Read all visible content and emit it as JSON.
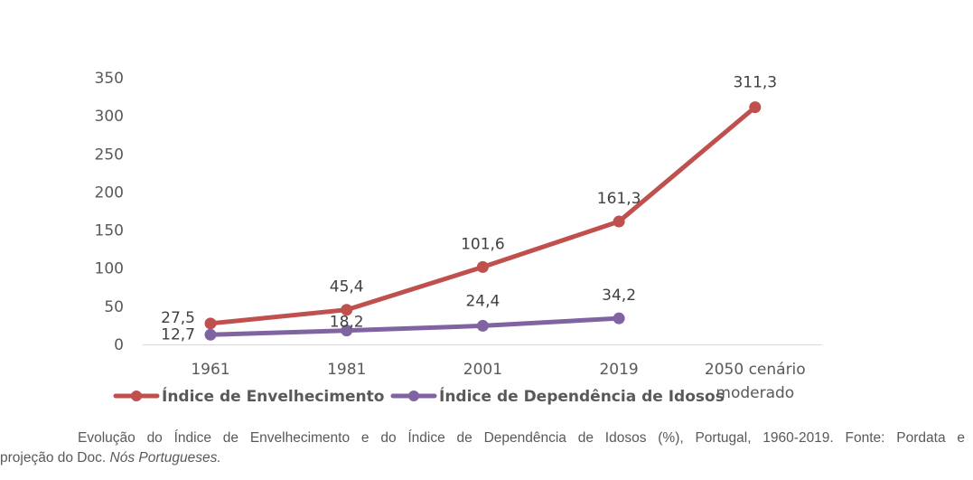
{
  "chart_data": {
    "type": "line",
    "title": "",
    "xlabel": "",
    "ylabel": "",
    "categories": [
      "1961",
      "1981",
      "2001",
      "2019",
      "2050 cenário moderado"
    ],
    "category_lines": [
      [
        "1961"
      ],
      [
        "1981"
      ],
      [
        "2001"
      ],
      [
        "2019"
      ],
      [
        "2050 cenário",
        "moderado"
      ]
    ],
    "ylim": [
      0,
      350
    ],
    "yticks": [
      0,
      50,
      100,
      150,
      200,
      250,
      300,
      350
    ],
    "grid": false,
    "legend_position": "bottom-left",
    "series": [
      {
        "name": "Índice de Envelhecimento",
        "color": "#c0504d",
        "values": [
          27.5,
          45.4,
          101.6,
          161.3,
          311.3
        ],
        "labels": [
          "27,5",
          "45,4",
          "101,6",
          "161,3",
          "311,3"
        ]
      },
      {
        "name": "Índice de Dependência de Idosos",
        "color": "#8064a2",
        "values": [
          12.7,
          18.2,
          24.4,
          34.2,
          null
        ],
        "labels": [
          "12,7",
          "18,2",
          "24,4",
          "34,2",
          null
        ]
      }
    ]
  },
  "caption": {
    "line1": "Evolução do Índice de Envelhecimento e do Índice de Dependência de Idosos (%), Portugal, 1960-2019. Fonte: Pordata e",
    "line2_plain": "projeção do Doc. ",
    "line2_italic": "Nós Portugueses."
  }
}
